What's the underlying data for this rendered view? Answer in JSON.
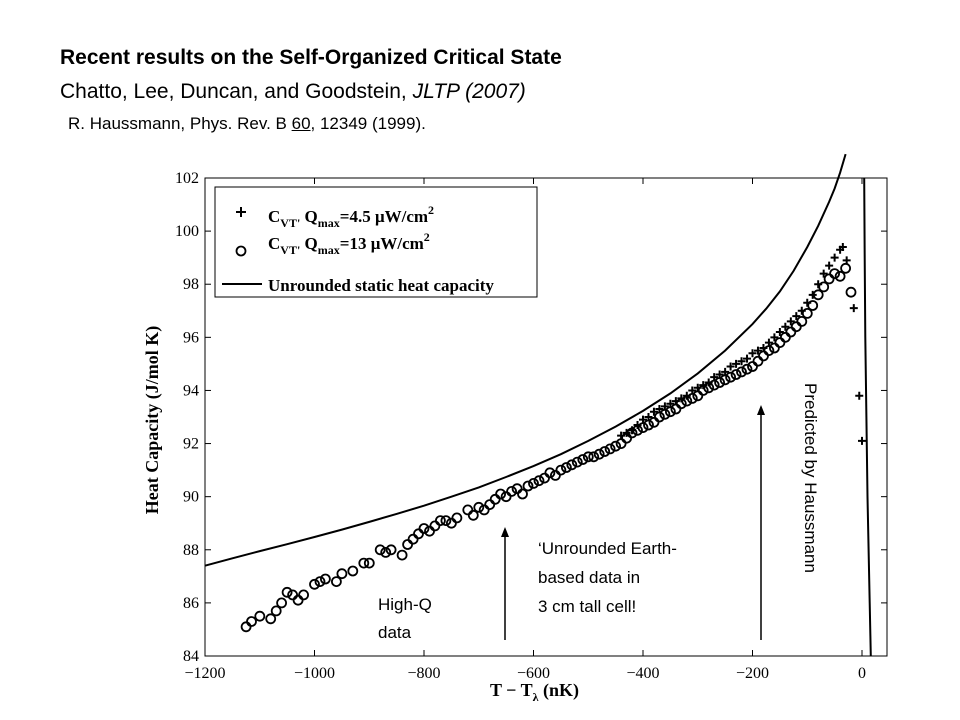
{
  "header": {
    "title": "Recent results on the Self-Organized Critical State",
    "subtitle_authors": "Chatto, Lee, Duncan, and Goodstein, ",
    "subtitle_journal": "JLTP (2007)",
    "reference_pre": "R. Haussmann, Phys. Rev. B ",
    "reference_volume": "60",
    "reference_post": ", 12349 (1999)."
  },
  "annotations": {
    "high_q_line1": "High-Q",
    "high_q_line2": "data",
    "unrounded_line1": "‘Unrounded Earth-",
    "unrounded_line2": "based data in",
    "unrounded_line3": "3 cm tall cell!",
    "predicted": "Predicted by Haussmann"
  },
  "colors": {
    "ink": "#000000",
    "background": "#ffffff"
  },
  "chart_data": {
    "type": "scatter",
    "xlabel_main": "T − T",
    "xlabel_sub": "λ",
    "xlabel_unit": " (nK)",
    "ylabel": "Heat Capacity (J/mol K)",
    "xlim": [
      -1200,
      20
    ],
    "ylim": [
      84,
      102
    ],
    "x_ticks": [
      -1200,
      -1000,
      -800,
      -600,
      -400,
      -200,
      0
    ],
    "x_tick_labels": [
      "−1200",
      "−1000",
      "−800",
      "−600",
      "−400",
      "−200",
      "0"
    ],
    "y_ticks": [
      84,
      86,
      88,
      90,
      92,
      94,
      96,
      98,
      100,
      102
    ],
    "y_tick_labels": [
      "84",
      "86",
      "88",
      "90",
      "92",
      "94",
      "96",
      "98",
      "100",
      "102"
    ],
    "legend_position": "top-left",
    "legend": [
      {
        "marker": "plus",
        "label_a": "C",
        "label_b": "VT'",
        "label_c": " Q",
        "label_d": "max",
        "label_e": "=4.5 μW/cm",
        "label_f": "2"
      },
      {
        "marker": "circle",
        "label_a": "C",
        "label_b": "VT'",
        "label_c": " Q",
        "label_d": "max",
        "label_e": "=13 μW/cm",
        "label_f": "2"
      },
      {
        "marker": "line",
        "label": "Unrounded static heat capacity"
      }
    ],
    "series": [
      {
        "marker": "plus",
        "x": [
          -440,
          -430,
          -420,
          -410,
          -400,
          -390,
          -380,
          -370,
          -360,
          -350,
          -340,
          -330,
          -320,
          -310,
          -300,
          -290,
          -280,
          -270,
          -260,
          -250,
          -240,
          -230,
          -220,
          -210,
          -200,
          -190,
          -180,
          -170,
          -160,
          -150,
          -140,
          -130,
          -120,
          -110,
          -100,
          -90,
          -80,
          -70,
          -60,
          -50,
          -40,
          -35,
          -28,
          -15,
          -5,
          0
        ],
        "y": [
          92.3,
          92.4,
          92.5,
          92.7,
          92.9,
          93.0,
          93.2,
          93.3,
          93.4,
          93.5,
          93.6,
          93.7,
          93.8,
          94.0,
          94.1,
          94.2,
          94.3,
          94.5,
          94.6,
          94.7,
          94.9,
          95.0,
          95.1,
          95.2,
          95.4,
          95.5,
          95.6,
          95.8,
          96.0,
          96.2,
          96.4,
          96.6,
          96.8,
          97.0,
          97.3,
          97.6,
          98.0,
          98.4,
          98.7,
          99.0,
          99.3,
          99.4,
          98.9,
          97.1,
          93.8,
          92.1
        ]
      },
      {
        "marker": "circle",
        "x": [
          -1125,
          -1115,
          -1100,
          -1080,
          -1070,
          -1060,
          -1050,
          -1040,
          -1030,
          -1020,
          -1000,
          -990,
          -980,
          -960,
          -950,
          -930,
          -910,
          -900,
          -880,
          -870,
          -860,
          -840,
          -830,
          -820,
          -810,
          -800,
          -790,
          -780,
          -770,
          -760,
          -750,
          -740,
          -720,
          -710,
          -700,
          -690,
          -680,
          -670,
          -660,
          -650,
          -640,
          -630,
          -620,
          -610,
          -600,
          -590,
          -580,
          -570,
          -560,
          -550,
          -540,
          -530,
          -520,
          -510,
          -500,
          -490,
          -480,
          -470,
          -460,
          -450,
          -440,
          -430,
          -420,
          -410,
          -400,
          -390,
          -380,
          -370,
          -360,
          -350,
          -340,
          -330,
          -320,
          -310,
          -300,
          -290,
          -280,
          -270,
          -260,
          -250,
          -240,
          -230,
          -220,
          -210,
          -200,
          -190,
          -180,
          -170,
          -160,
          -150,
          -140,
          -130,
          -120,
          -110,
          -100,
          -90,
          -80,
          -70,
          -60,
          -50,
          -40,
          -30,
          -20
        ],
        "y": [
          85.1,
          85.3,
          85.5,
          85.4,
          85.7,
          86.0,
          86.4,
          86.3,
          86.1,
          86.3,
          86.7,
          86.8,
          86.9,
          86.8,
          87.1,
          87.2,
          87.5,
          87.5,
          88.0,
          87.9,
          88.0,
          87.8,
          88.2,
          88.4,
          88.6,
          88.8,
          88.7,
          88.9,
          89.1,
          89.1,
          89.0,
          89.2,
          89.5,
          89.3,
          89.6,
          89.5,
          89.7,
          89.9,
          90.1,
          90.0,
          90.2,
          90.3,
          90.1,
          90.4,
          90.5,
          90.6,
          90.7,
          90.9,
          90.8,
          91.0,
          91.1,
          91.2,
          91.3,
          91.4,
          91.5,
          91.5,
          91.6,
          91.7,
          91.8,
          91.9,
          92.0,
          92.2,
          92.4,
          92.5,
          92.6,
          92.7,
          92.8,
          93.0,
          93.1,
          93.2,
          93.3,
          93.5,
          93.6,
          93.7,
          93.8,
          94.0,
          94.1,
          94.2,
          94.3,
          94.4,
          94.5,
          94.6,
          94.7,
          94.8,
          94.9,
          95.1,
          95.3,
          95.5,
          95.6,
          95.8,
          96.0,
          96.2,
          96.4,
          96.6,
          96.9,
          97.2,
          97.6,
          97.9,
          98.2,
          98.4,
          98.3,
          98.6,
          97.7
        ]
      },
      {
        "marker": "line",
        "x": [
          -1200,
          -1150,
          -1100,
          -1050,
          -1000,
          -950,
          -900,
          -850,
          -800,
          -750,
          -700,
          -650,
          -600,
          -550,
          -500,
          -450,
          -400,
          -350,
          -300,
          -250,
          -200,
          -175,
          -150,
          -125,
          -100,
          -80,
          -60,
          -50,
          -40,
          -30
        ],
        "y": [
          87.4,
          87.68,
          87.95,
          88.21,
          88.48,
          88.76,
          89.05,
          89.35,
          89.66,
          90.0,
          90.35,
          90.74,
          91.15,
          91.6,
          92.1,
          92.64,
          93.23,
          93.89,
          94.64,
          95.5,
          96.5,
          97.08,
          97.73,
          98.5,
          99.4,
          100.2,
          101.1,
          101.6,
          102.2,
          102.9
        ]
      },
      {
        "marker": "line",
        "x": [
          4,
          5,
          6,
          8,
          10,
          12,
          14,
          16
        ],
        "y": [
          102,
          99,
          96,
          93,
          90,
          88,
          86,
          84
        ]
      }
    ]
  }
}
